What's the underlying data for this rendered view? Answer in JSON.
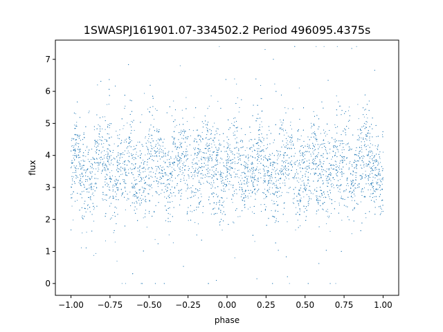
{
  "chart_data": {
    "type": "scatter",
    "title": "1SWASPJ161901.07-334502.2 Period 496095.4375s",
    "xlabel": "phase",
    "ylabel": "flux",
    "xlim": [
      -1.1,
      1.1
    ],
    "ylim": [
      -0.37,
      7.6
    ],
    "xticks": [
      -1.0,
      -0.75,
      -0.5,
      -0.25,
      0.0,
      0.25,
      0.5,
      0.75,
      1.0
    ],
    "xtick_labels": [
      "−1.00",
      "−0.75",
      "−0.50",
      "−0.25",
      "0.00",
      "0.25",
      "0.50",
      "0.75",
      "1.00"
    ],
    "yticks": [
      0,
      1,
      2,
      3,
      4,
      5,
      6,
      7
    ],
    "ytick_labels": [
      "0",
      "1",
      "2",
      "3",
      "4",
      "5",
      "6",
      "7"
    ],
    "grid": false,
    "point_color": "#1f77b4",
    "point_count": 7000,
    "x_range": [
      -1.0,
      1.0
    ],
    "y_range": [
      0.0,
      7.4
    ],
    "y_typical": 3.6,
    "y_spread_core": [
      2.5,
      4.7
    ],
    "points": [
      [
        -0.98,
        4.3
      ],
      [
        -0.97,
        5.3
      ],
      [
        -0.96,
        2.6
      ],
      [
        -0.95,
        4.0
      ],
      [
        -0.92,
        3.1
      ],
      [
        -0.9,
        1.6
      ],
      [
        -0.88,
        3.8
      ],
      [
        -0.85,
        4.8
      ],
      [
        -0.83,
        6.2
      ],
      [
        -0.8,
        3.5
      ],
      [
        -0.75,
        3.7
      ],
      [
        -0.7,
        2.9
      ],
      [
        -0.68,
        3.4
      ],
      [
        -0.65,
        0.0
      ],
      [
        -0.62,
        3.6
      ],
      [
        -0.58,
        4.1
      ],
      [
        -0.55,
        0.0
      ],
      [
        -0.5,
        3.3
      ],
      [
        -0.45,
        4.0
      ],
      [
        -0.4,
        2.7
      ],
      [
        -0.35,
        3.2
      ],
      [
        -0.3,
        6.8
      ],
      [
        -0.25,
        3.0
      ],
      [
        -0.2,
        3.6
      ],
      [
        -0.15,
        5.0
      ],
      [
        -0.1,
        3.4
      ],
      [
        -0.05,
        4.2
      ],
      [
        0.0,
        4.4
      ],
      [
        0.03,
        5.0
      ],
      [
        0.05,
        0.8
      ],
      [
        0.08,
        3.1
      ],
      [
        0.12,
        3.7
      ],
      [
        0.15,
        4.5
      ],
      [
        0.2,
        3.3
      ],
      [
        0.25,
        3.9
      ],
      [
        0.3,
        2.8
      ],
      [
        0.35,
        3.5
      ],
      [
        0.38,
        4.0
      ],
      [
        0.4,
        0.0
      ],
      [
        0.45,
        3.2
      ],
      [
        0.5,
        3.6
      ],
      [
        0.55,
        4.1
      ],
      [
        0.6,
        2.7
      ],
      [
        0.65,
        3.4
      ],
      [
        0.7,
        3.8
      ],
      [
        0.75,
        2.9
      ],
      [
        0.8,
        4.2
      ],
      [
        0.83,
        7.4
      ],
      [
        0.88,
        5.2
      ],
      [
        0.92,
        3.5
      ],
      [
        0.95,
        4.3
      ],
      [
        0.98,
        3.9
      ],
      [
        1.0,
        4.1
      ]
    ]
  }
}
